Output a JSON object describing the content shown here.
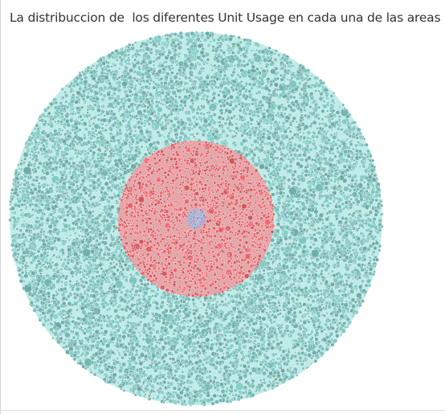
{
  "title": "La distribuccion de  los diferentes Unit Usage en cada una de las areas",
  "chart_data": {
    "type": "packed-bubble",
    "title": "La distribuccion de  los diferentes Unit Usage en cada una de las areas",
    "legend": "none",
    "grid": false,
    "series": [
      {
        "color": "#7dc4bf",
        "approx_share": 0.74
      },
      {
        "color": "#e8636a",
        "approx_share": 0.25
      },
      {
        "color": "#7e9ccd",
        "approx_share": 0.01
      }
    ]
  }
}
